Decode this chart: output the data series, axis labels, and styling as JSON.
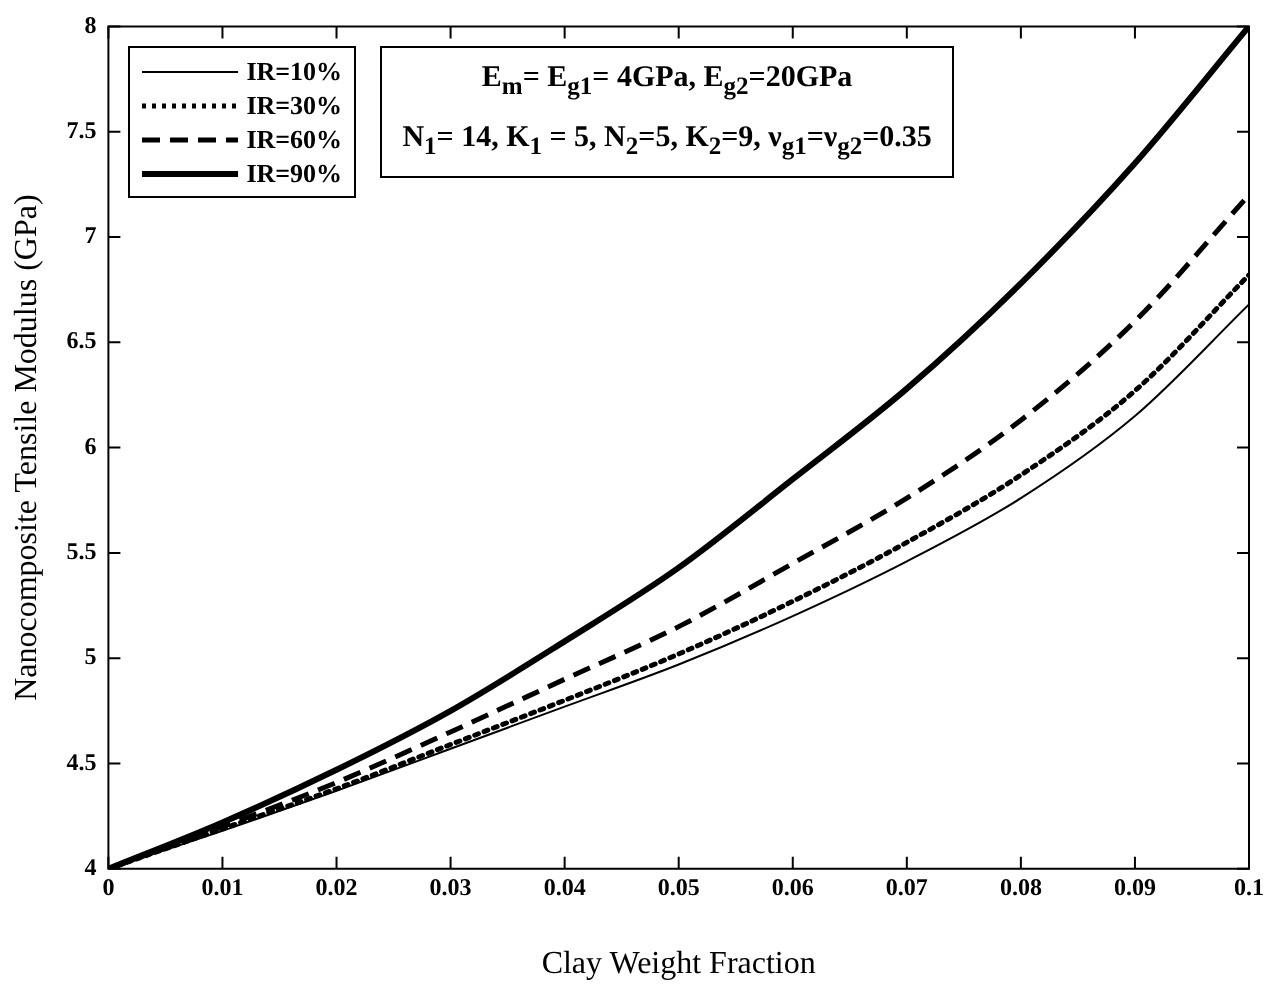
{
  "chart_data": {
    "type": "line",
    "xlabel": "Clay Weight Fraction",
    "ylabel": "Nanocomposite Tensile Modulus (GPa)",
    "x": [
      0,
      0.01,
      0.02,
      0.03,
      0.04,
      0.05,
      0.06,
      0.07,
      0.08,
      0.09,
      0.1
    ],
    "series": [
      {
        "name": "IR=10%",
        "color": "#000000",
        "line_style": "solid",
        "values": [
          4,
          4.18,
          4.37,
          4.57,
          4.77,
          4.97,
          5.2,
          5.46,
          5.76,
          6.15,
          6.68
        ]
      },
      {
        "name": "IR=30%",
        "color": "#000000",
        "line_style": "dotted",
        "values": [
          4,
          4.19,
          4.38,
          4.59,
          4.8,
          5.02,
          5.27,
          5.55,
          5.87,
          6.27,
          6.82
        ]
      },
      {
        "name": "IR=60%",
        "color": "#000000",
        "line_style": "dashed",
        "values": [
          4,
          4.2,
          4.41,
          4.65,
          4.9,
          5.15,
          5.45,
          5.76,
          6.13,
          6.6,
          7.2
        ]
      },
      {
        "name": "IR=90%",
        "color": "#000000",
        "line_style": "solid",
        "values": [
          4,
          4.22,
          4.47,
          4.75,
          5.08,
          5.43,
          5.85,
          6.28,
          6.78,
          7.35,
          8.0
        ]
      }
    ],
    "xlim": [
      0,
      0.1
    ],
    "xticks": [
      0,
      0.01,
      0.02,
      0.03,
      0.04,
      0.05,
      0.06,
      0.07,
      0.08,
      0.09,
      0.1
    ],
    "ylim": [
      4,
      8
    ],
    "yticks": [
      4,
      4.5,
      5,
      5.5,
      6,
      6.5,
      7,
      7.5,
      8
    ],
    "grid": false,
    "legend": "top left",
    "marker": "none",
    "annotations": [
      "E$_{m}$= E$_{g1}$= 4GPa, E$_{g2}$=20GPa",
      "N$_{1}$= 14, K$_{1}$ = 5, N$_{2}$=5, K$_{2}$=9, ν$_{g1}$=ν$_{g2}$=0.35"
    ]
  }
}
